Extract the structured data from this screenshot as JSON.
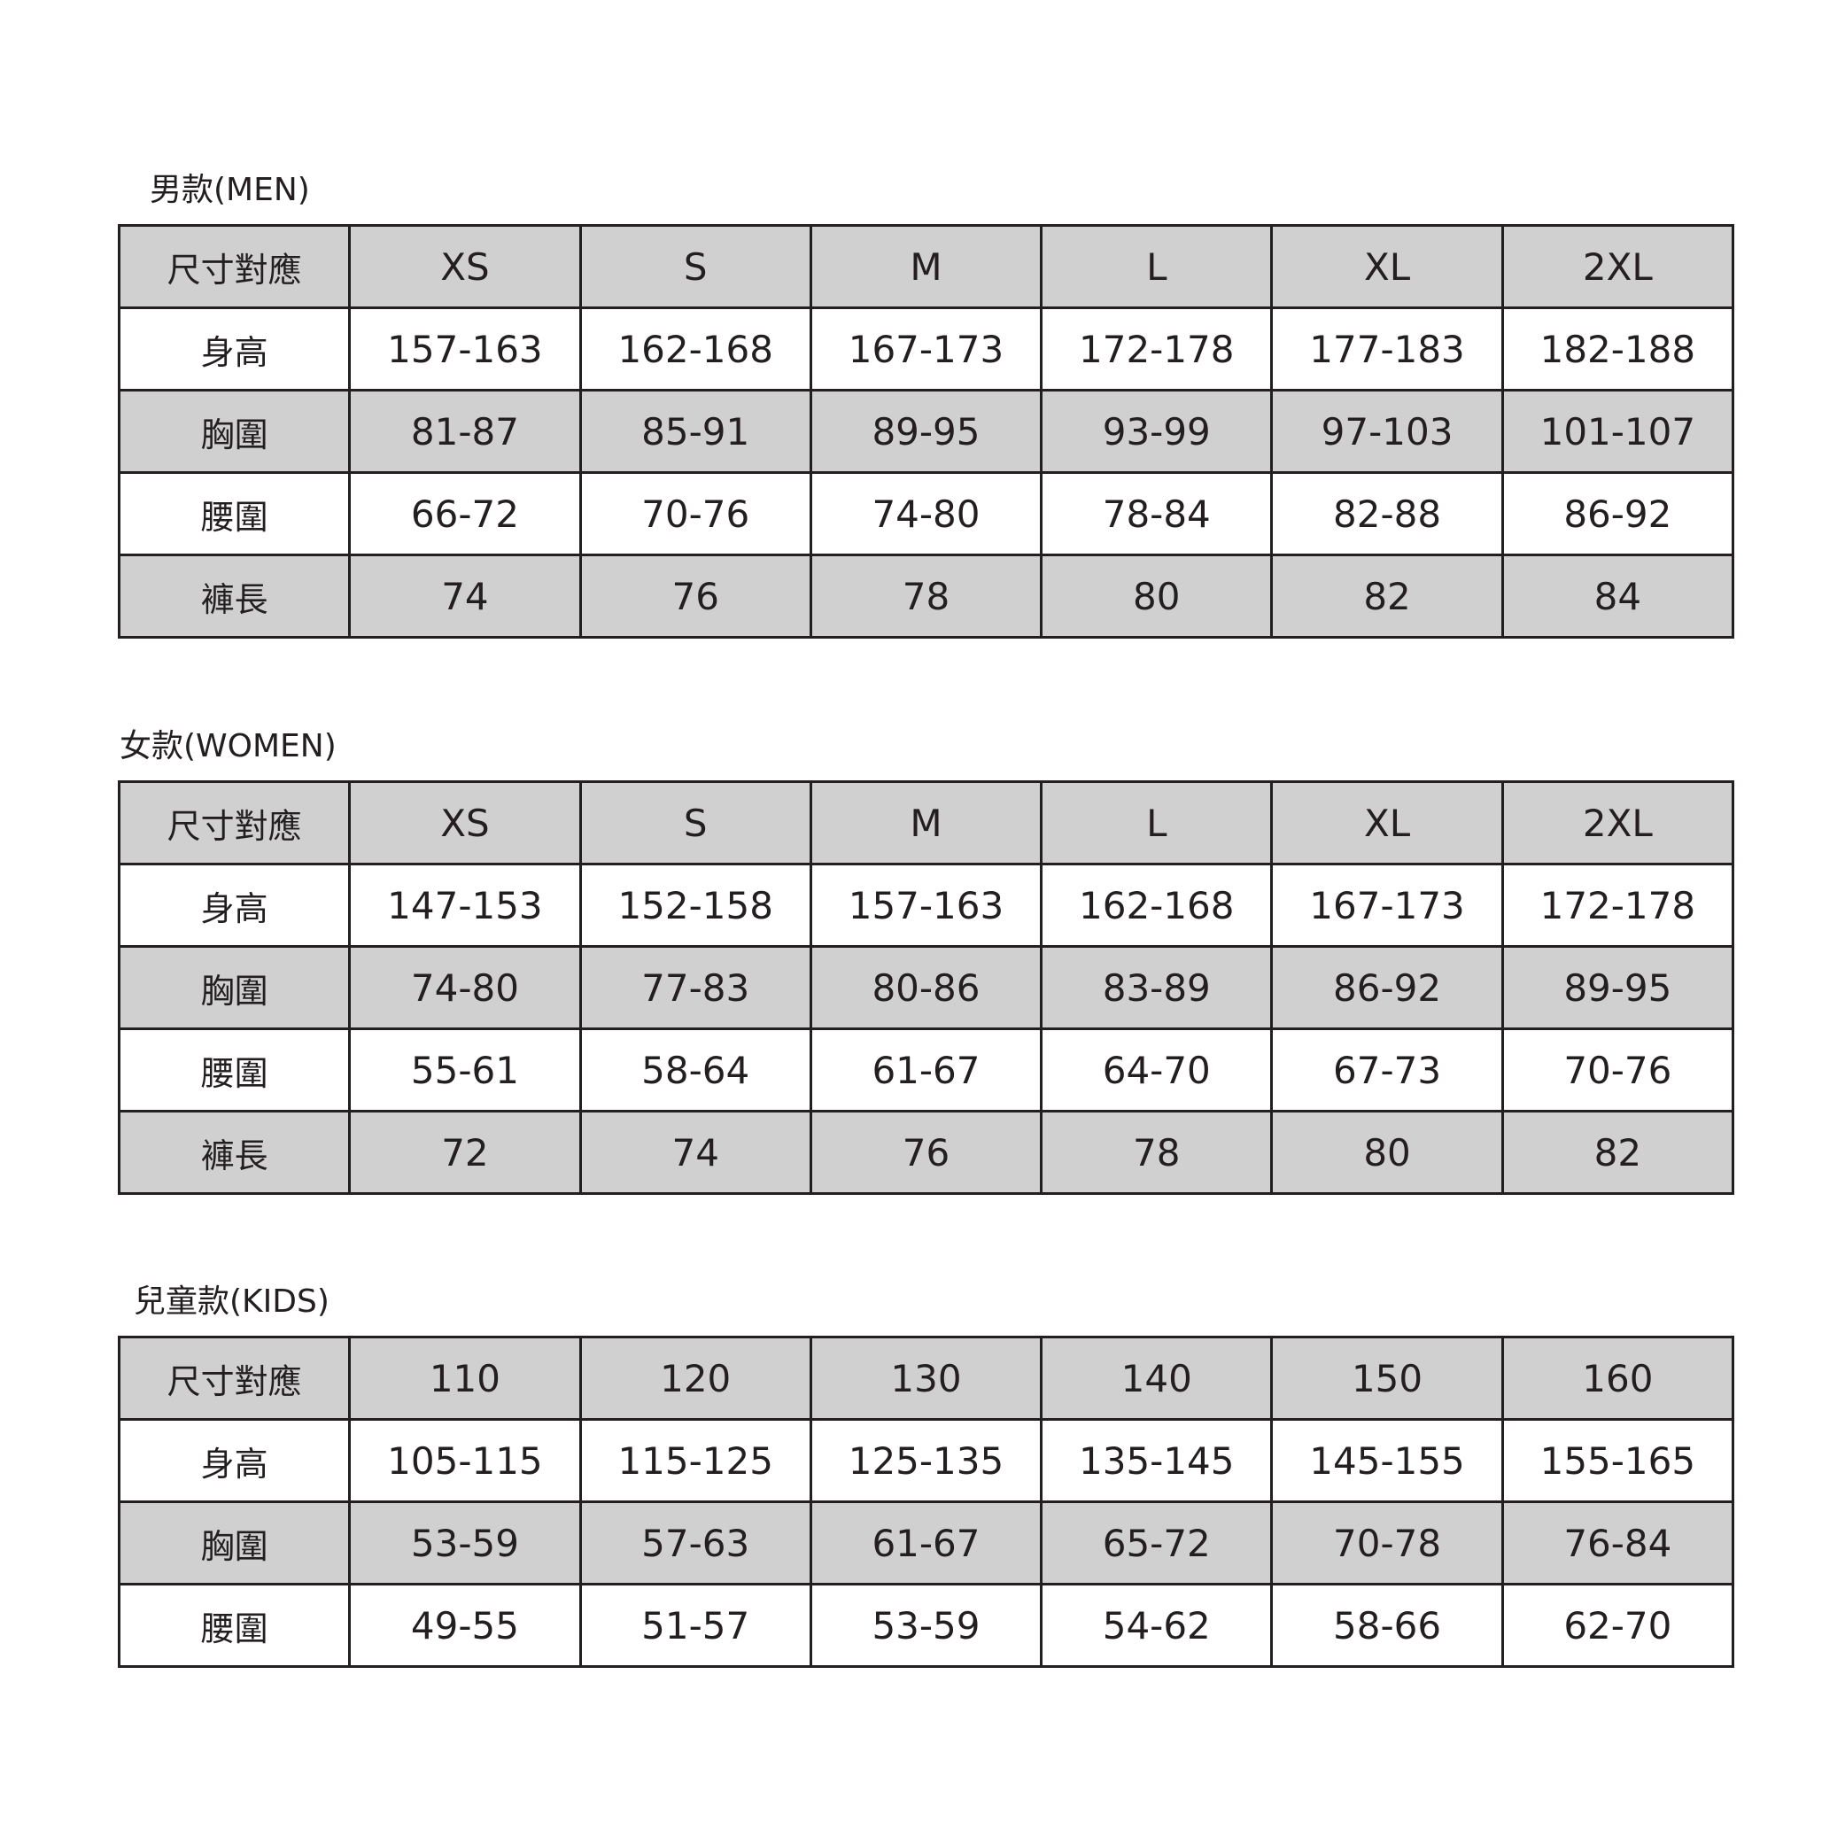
{
  "colors": {
    "shaded_row": "#d0d0d0",
    "border": "#231f20",
    "text": "#231f20"
  },
  "tables": [
    {
      "title": "男款(MEN)",
      "header": [
        "尺寸對應",
        "XS",
        "S",
        "M",
        "L",
        "XL",
        "2XL"
      ],
      "rows": [
        {
          "label": "身高",
          "values": [
            "157-163",
            "162-168",
            "167-173",
            "172-178",
            "177-183",
            "182-188"
          ]
        },
        {
          "label": "胸圍",
          "values": [
            "81-87",
            "85-91",
            "89-95",
            "93-99",
            "97-103",
            "101-107"
          ]
        },
        {
          "label": "腰圍",
          "values": [
            "66-72",
            "70-76",
            "74-80",
            "78-84",
            "82-88",
            "86-92"
          ]
        },
        {
          "label": "褲長",
          "values": [
            "74",
            "76",
            "78",
            "80",
            "82",
            "84"
          ]
        }
      ]
    },
    {
      "title": "女款(WOMEN)",
      "header": [
        "尺寸對應",
        "XS",
        "S",
        "M",
        "L",
        "XL",
        "2XL"
      ],
      "rows": [
        {
          "label": "身高",
          "values": [
            "147-153",
            "152-158",
            "157-163",
            "162-168",
            "167-173",
            "172-178"
          ]
        },
        {
          "label": "胸圍",
          "values": [
            "74-80",
            "77-83",
            "80-86",
            "83-89",
            "86-92",
            "89-95"
          ]
        },
        {
          "label": "腰圍",
          "values": [
            "55-61",
            "58-64",
            "61-67",
            "64-70",
            "67-73",
            "70-76"
          ]
        },
        {
          "label": "褲長",
          "values": [
            "72",
            "74",
            "76",
            "78",
            "80",
            "82"
          ]
        }
      ]
    },
    {
      "title": "兒童款(KIDS)",
      "header": [
        "尺寸對應",
        "110",
        "120",
        "130",
        "140",
        "150",
        "160"
      ],
      "rows": [
        {
          "label": "身高",
          "values": [
            "105-115",
            "115-125",
            "125-135",
            "135-145",
            "145-155",
            "155-165"
          ]
        },
        {
          "label": "胸圍",
          "values": [
            "53-59",
            "57-63",
            "61-67",
            "65-72",
            "70-78",
            "76-84"
          ]
        },
        {
          "label": "腰圍",
          "values": [
            "49-55",
            "51-57",
            "53-59",
            "54-62",
            "58-66",
            "62-70"
          ]
        }
      ]
    }
  ]
}
